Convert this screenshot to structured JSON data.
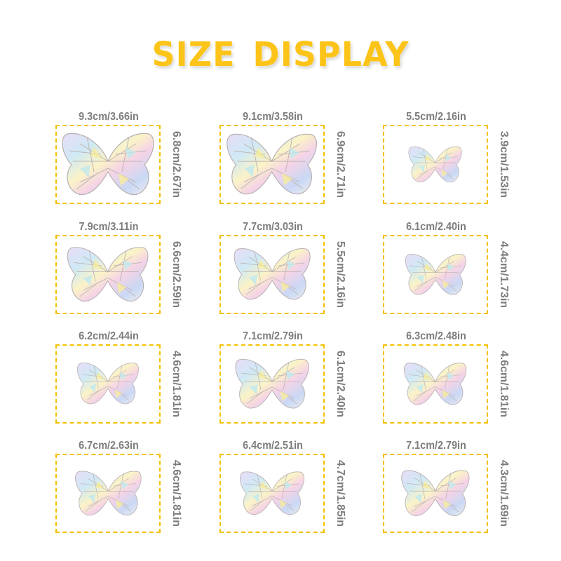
{
  "title": "SIZE DISPLAY",
  "colors": {
    "title": "#fcc419",
    "border": "#f5c000",
    "label": "#7d7d7d"
  },
  "items": [
    {
      "width": "9.3cm/3.66in",
      "height": "6.8cm/2.67in",
      "scale": 1.0
    },
    {
      "width": "9.1cm/3.58in",
      "height": "6.9cm/2.71in",
      "scale": 0.98
    },
    {
      "width": "5.5cm/2.16in",
      "height": "3.9cm/1.53in",
      "scale": 0.58
    },
    {
      "width": "7.9cm/3.11in",
      "height": "6.6cm/2.59in",
      "scale": 0.88
    },
    {
      "width": "7.7cm/3.03in",
      "height": "5.5cm/2.16in",
      "scale": 0.83
    },
    {
      "width": "6.1cm/2.40in",
      "height": "4.4cm/1.73in",
      "scale": 0.66
    },
    {
      "width": "6.2cm/2.44in",
      "height": "4.6cm/1.81in",
      "scale": 0.67
    },
    {
      "width": "7.1cm/2.79in",
      "height": "6.1cm/2.40in",
      "scale": 0.8
    },
    {
      "width": "6.3cm/2.48in",
      "height": "4.6cm/1.81in",
      "scale": 0.68
    },
    {
      "width": "6.7cm/2.63in",
      "height": "4.6cm/1.81in",
      "scale": 0.72
    },
    {
      "width": "6.4cm/2.51in",
      "height": "4.7cm/1.85in",
      "scale": 0.7
    },
    {
      "width": "7.1cm/2.79in",
      "height": "4.3cm/1.69in",
      "scale": 0.74
    }
  ]
}
